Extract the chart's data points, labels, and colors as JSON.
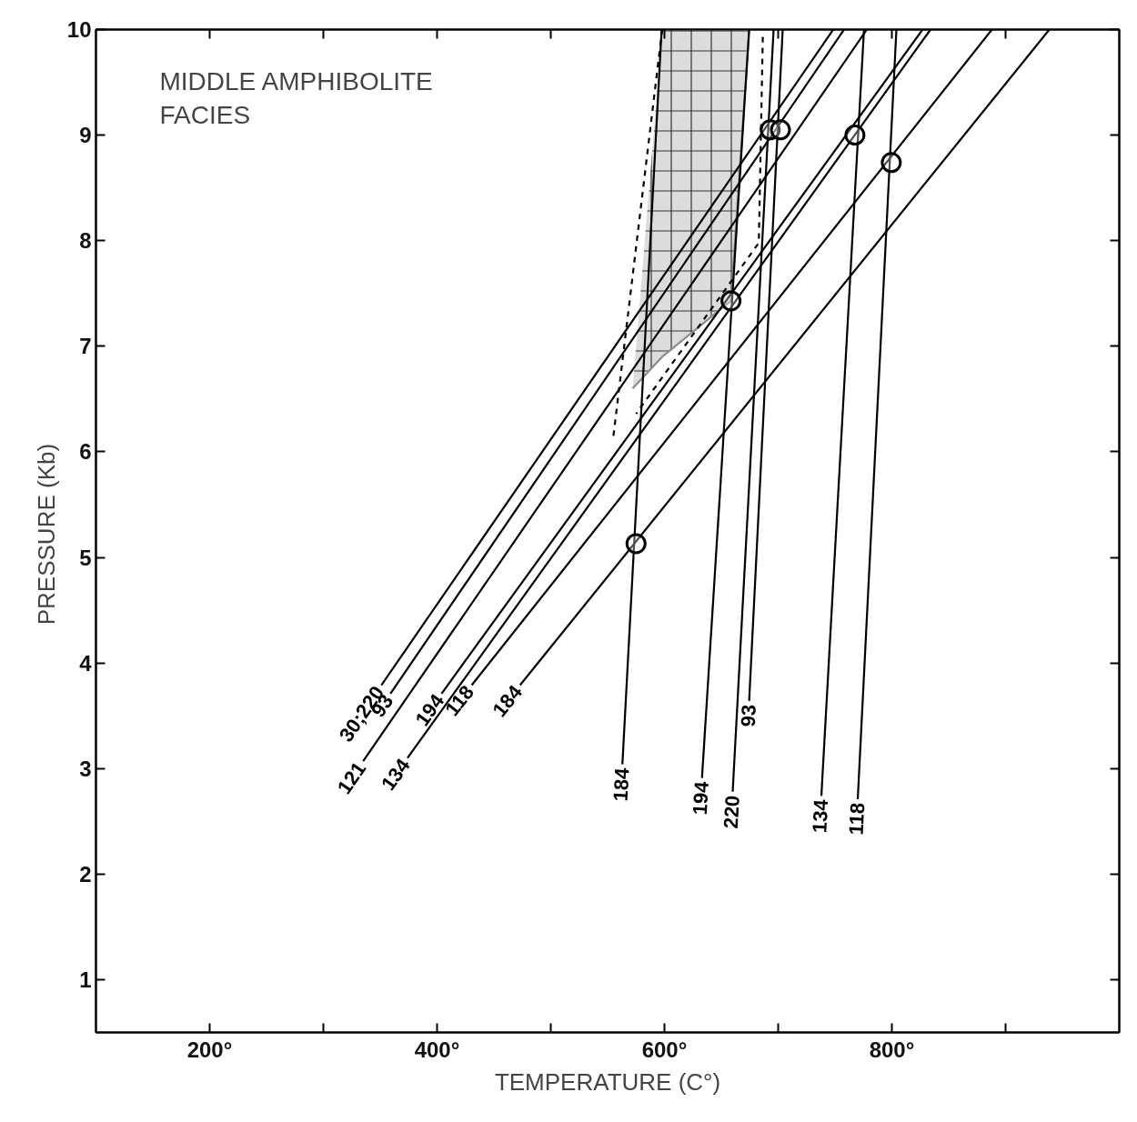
{
  "chart_data": {
    "type": "line",
    "xlabel": "TEMPERATURE (C°)",
    "ylabel": "PRESSURE  (Kb)",
    "annotations": [
      "MIDDLE AMPHIBOLITE\nFACIES"
    ],
    "xlim": [
      100,
      1000
    ],
    "ylim": [
      0.5,
      10
    ],
    "xticks": [
      {
        "value": 200,
        "label": "200°"
      },
      {
        "value": 300,
        "label": null
      },
      {
        "value": 400,
        "label": "400°"
      },
      {
        "value": 500,
        "label": null
      },
      {
        "value": 600,
        "label": "600°"
      },
      {
        "value": 700,
        "label": null
      },
      {
        "value": 800,
        "label": "800°"
      },
      {
        "value": 900,
        "label": null
      }
    ],
    "yticks": [
      1,
      2,
      3,
      4,
      5,
      6,
      7,
      8,
      9,
      10
    ],
    "grid": false,
    "line_style": "solid",
    "series": [
      {
        "type": "line",
        "color": "#8c8c8c",
        "x": [
          572,
          598,
          658.5,
          674.5
        ],
        "values": [
          6.6,
          6.9,
          7.43,
          10
        ],
        "lower": [
          6.6,
          6.9,
          7.43,
          10
        ],
        "upper": [
          6.6,
          10,
          10,
          10
        ]
      },
      {
        "name": "30;220",
        "color": "#000000",
        "x": [
          351,
          748.5
        ],
        "values": [
          3.79,
          10
        ]
      },
      {
        "name": "93",
        "color": "#000000",
        "x": [
          359,
          758
        ],
        "values": [
          3.71,
          10
        ]
      },
      {
        "name": "121",
        "color": "#000000",
        "x": [
          335,
          778
        ],
        "values": [
          3.07,
          10
        ]
      },
      {
        "name": "134",
        "color": "#000000",
        "x": [
          374,
          834
        ],
        "values": [
          3.1,
          10
        ]
      },
      {
        "name": "194",
        "color": "#000000",
        "x": [
          404,
          827
        ],
        "values": [
          3.71,
          10
        ]
      },
      {
        "name": "118",
        "color": "#000000",
        "x": [
          430.5,
          888
        ],
        "values": [
          3.79,
          10
        ]
      },
      {
        "name": "184",
        "color": "#000000",
        "x": [
          473,
          938.5
        ],
        "values": [
          3.79,
          10
        ]
      },
      {
        "name": "184",
        "color": "#000000",
        "x": [
          563,
          597.5
        ],
        "values": [
          3.04,
          10
        ]
      },
      {
        "name": "194",
        "color": "#000000",
        "x": [
          633,
          674.5
        ],
        "values": [
          2.91,
          10
        ]
      },
      {
        "name": "220",
        "color": "#000000",
        "x": [
          660,
          696
        ],
        "values": [
          2.78,
          10
        ]
      },
      {
        "name": "93",
        "color": "#000000",
        "x": [
          674.5,
          704
        ],
        "values": [
          3.64,
          10
        ]
      },
      {
        "name": "134",
        "color": "#000000",
        "x": [
          738,
          775.5
        ],
        "values": [
          2.74,
          10
        ]
      },
      {
        "name": "118",
        "color": "#000000",
        "x": [
          770,
          804
        ],
        "values": [
          2.71,
          10
        ]
      },
      {
        "color": "#000000",
        "line_style": "dashed",
        "x": [
          598,
          555
        ],
        "values": [
          10,
          6.14
        ]
      },
      {
        "color": "#000000",
        "line_style": "dashed",
        "x": [
          686.5,
          683,
          575
        ],
        "values": [
          9.93,
          7.98,
          6.36
        ]
      },
      {
        "type": "scatter",
        "marker": "circle",
        "color": "#000000",
        "x": [
          575,
          658.5,
          693,
          702,
          767.5,
          799.5
        ],
        "values": [
          5.13,
          7.43,
          9.05,
          9.05,
          9.0,
          8.74
        ]
      }
    ]
  }
}
